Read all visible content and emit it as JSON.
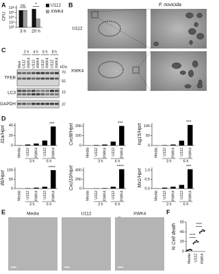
{
  "figure": {
    "labels": [
      "A",
      "B",
      "C",
      "D",
      "E",
      "F"
    ],
    "b": {
      "title": "F. novicida",
      "rows": [
        "U112",
        "XWK4"
      ]
    },
    "c": {
      "medium": "Med",
      "times": [
        "2 h",
        "4 h",
        "6 h",
        "8 h"
      ],
      "lanes": [
        "U112",
        "XWK4"
      ],
      "proteins": [
        "TFEB",
        "LC3",
        "GAPDH"
      ],
      "unit": "kDa",
      "markers": [
        70,
        55,
        15,
        37
      ]
    },
    "e": {
      "columns": [
        "Media",
        "U112",
        "XWK4"
      ]
    }
  },
  "chart_data": [
    {
      "type": "bar",
      "ylabel": "CFU",
      "log": true,
      "categories": [
        "3 h",
        "20 h"
      ],
      "series": [
        {
          "name": "U112",
          "color": "#111111",
          "values": [
            10000000,
            30000000
          ]
        },
        {
          "name": "XWK4",
          "color": "#9a9a9a",
          "values": [
            10000000,
            3000
          ]
        }
      ],
      "ylim": [
        1,
        1000000000
      ],
      "yticks": [
        {
          "value": 1,
          "label": "10⁰"
        },
        {
          "value": 100,
          "label": "10²"
        },
        {
          "value": 10000,
          "label": "10⁴"
        },
        {
          "value": 1000000,
          "label": "10⁶"
        },
        {
          "value": 100000000,
          "label": "10⁸"
        }
      ],
      "annotations": [
        "ns",
        "*"
      ]
    },
    {
      "type": "bar",
      "ylabel": "Il1a/Hprt",
      "categories": [
        "Media",
        "U112",
        "XWK4",
        "U112",
        "XWK4"
      ],
      "groups": [
        "3 h",
        "6 h"
      ],
      "values": [
        0.5,
        2,
        4,
        10,
        38
      ],
      "color": "#000000",
      "ylim": [
        0,
        45
      ],
      "yticks": [
        0,
        20,
        40
      ],
      "annotation": "***"
    },
    {
      "type": "bar",
      "ylabel": "Cxcl8/Hprt",
      "categories": [
        "Media",
        "U112",
        "XWK4",
        "U112",
        "XWK4"
      ],
      "groups": [
        "3 h",
        "6 h"
      ],
      "values": [
        1,
        5,
        10,
        40,
        200
      ],
      "color": "#000000",
      "ylim": [
        0,
        230
      ],
      "yticks": [
        0,
        100,
        200
      ],
      "annotation": "***"
    },
    {
      "type": "bar",
      "ylabel": "Isg15/Hprt",
      "categories": [
        "Media",
        "U112",
        "XWK4",
        "U112",
        "XWK4"
      ],
      "groups": [
        "3 h",
        "6 h"
      ],
      "values": [
        0.5,
        2,
        5,
        25,
        105
      ],
      "color": "#000000",
      "ylim": [
        0,
        115
      ],
      "yticks": [
        0,
        50,
        100
      ],
      "annotation": "***"
    },
    {
      "type": "bar",
      "ylabel": "Il6/Hprt",
      "categories": [
        "Media",
        "U112",
        "XWK4",
        "U112",
        "XWK4"
      ],
      "groups": [
        "3 h",
        "6 h"
      ],
      "values": [
        0.5,
        2,
        5,
        10,
        100
      ],
      "color": "#000000",
      "ylim": [
        0,
        115
      ],
      "yticks": [
        0,
        50,
        100
      ],
      "annotation": "****"
    },
    {
      "type": "bar",
      "ylabel": "Cxcl10/Hprt",
      "categories": [
        "Media",
        "U112",
        "XWK4",
        "U112",
        "XWK4"
      ],
      "groups": [
        "3 h",
        "6 h"
      ],
      "values": [
        1,
        5,
        10,
        40,
        420
      ],
      "color": "#000000",
      "ylim": [
        0,
        460
      ],
      "yticks": [
        0,
        200,
        400
      ],
      "annotation": "****"
    },
    {
      "type": "bar",
      "ylabel": "Mx1/Hprt",
      "categories": [
        "Media",
        "U112",
        "XWK4",
        "U112",
        "XWK4"
      ],
      "groups": [
        "3 h",
        "6 h"
      ],
      "values": [
        0.01,
        0.05,
        0.1,
        0.2,
        1.05
      ],
      "color": "#000000",
      "ylim": [
        0,
        1.15
      ],
      "yticks": [
        {
          "value": 0,
          "label": "0.0"
        },
        0.5,
        {
          "value": 1,
          "label": "1.0"
        }
      ],
      "annotation": "***"
    },
    {
      "type": "dot",
      "ylabel": "% Cell death",
      "categories": [
        "Media",
        "U112",
        "XWK4"
      ],
      "values": [
        [
          2,
          3,
          4,
          3
        ],
        [
          16,
          19,
          22,
          20
        ],
        [
          38,
          41,
          44,
          42
        ]
      ],
      "means": [
        3,
        19,
        41
      ],
      "color": "#000000",
      "ylim": [
        0,
        60
      ],
      "yticks": [
        0,
        20,
        40,
        60
      ],
      "annotations": [
        "****",
        "****"
      ]
    }
  ]
}
